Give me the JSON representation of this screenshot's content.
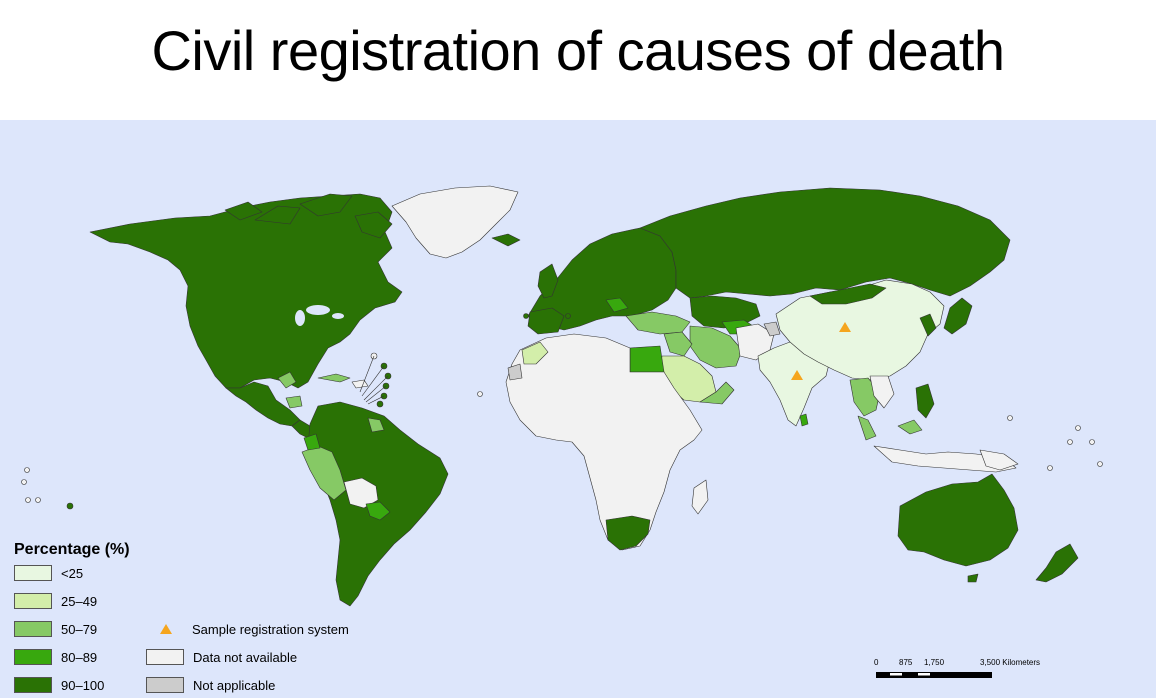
{
  "title": "Civil registration of causes of death",
  "legend": {
    "title": "Percentage (%)",
    "items": [
      {
        "label": "<25",
        "color": "#e8f7e1"
      },
      {
        "label": "25–49",
        "color": "#d3eeaa"
      },
      {
        "label": "50–79",
        "color": "#86c965"
      },
      {
        "label": "80–89",
        "color": "#38a80e"
      },
      {
        "label": "90–100",
        "color": "#2a7205"
      }
    ],
    "other": [
      {
        "label": "Sample registration system",
        "symbol": "triangle",
        "color": "#f5a51e"
      },
      {
        "label": "Data not available",
        "color": "#f2f2f2"
      },
      {
        "label": "Not applicable",
        "color": "#cccccc"
      }
    ]
  },
  "scale_bar": {
    "ticks": [
      "0",
      "875",
      "1,750",
      "3,500 Kilometers"
    ]
  },
  "map": {
    "ocean_color": "#dde6fb",
    "sample_registration_markers": [
      "China",
      "India"
    ]
  }
}
